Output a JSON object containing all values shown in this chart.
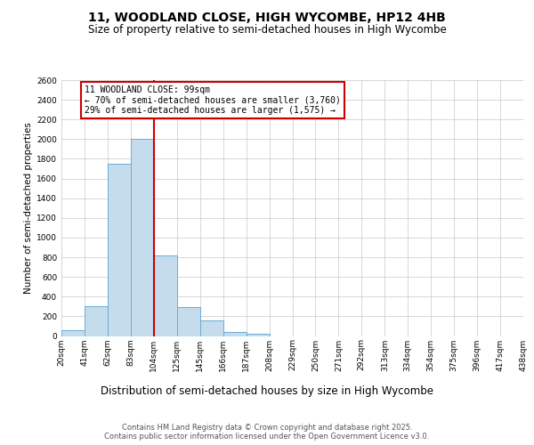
{
  "title_line1": "11, WOODLAND CLOSE, HIGH WYCOMBE, HP12 4HB",
  "title_line2": "Size of property relative to semi-detached houses in High Wycombe",
  "xlabel": "Distribution of semi-detached houses by size in High Wycombe",
  "ylabel": "Number of semi-detached properties",
  "annotation_title": "11 WOODLAND CLOSE: 99sqm",
  "annotation_line1": "← 70% of semi-detached houses are smaller (3,760)",
  "annotation_line2": "29% of semi-detached houses are larger (1,575) →",
  "footer_line1": "Contains HM Land Registry data © Crown copyright and database right 2025.",
  "footer_line2": "Contains public sector information licensed under the Open Government Licence v3.0.",
  "bar_values": [
    55,
    300,
    1750,
    2000,
    820,
    295,
    160,
    40,
    25,
    0,
    0,
    0,
    0,
    0,
    0,
    0,
    0,
    0,
    0,
    0
  ],
  "bar_labels": [
    "20sqm",
    "41sqm",
    "62sqm",
    "83sqm",
    "104sqm",
    "125sqm",
    "145sqm",
    "166sqm",
    "187sqm",
    "208sqm",
    "229sqm",
    "250sqm",
    "271sqm",
    "292sqm",
    "313sqm",
    "334sqm",
    "354sqm",
    "375sqm",
    "396sqm",
    "417sqm",
    "438sqm"
  ],
  "bar_color": "#c5dced",
  "bar_edge_color": "#6aaed6",
  "red_line_color": "#cc0000",
  "annotation_box_edgecolor": "#cc0000",
  "ylim_max": 2600,
  "ytick_step": 200,
  "background_color": "#ffffff",
  "grid_color": "#c8c8c8",
  "title_fontsize": 10,
  "subtitle_fontsize": 8.5,
  "ylabel_fontsize": 7.5,
  "xlabel_fontsize": 8.5,
  "tick_fontsize": 6.5,
  "annotation_fontsize": 7,
  "footer_fontsize": 6
}
